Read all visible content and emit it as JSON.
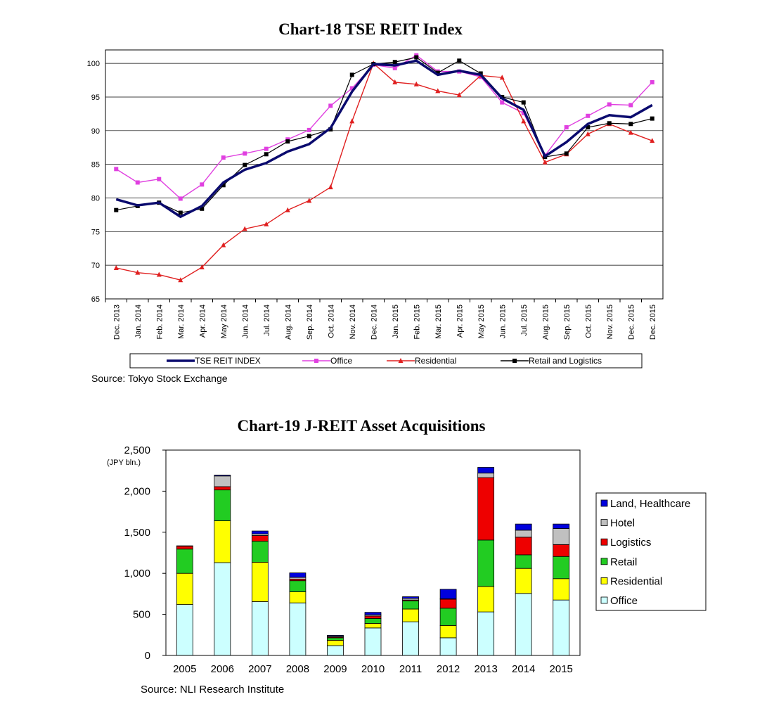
{
  "chart_data": [
    {
      "type": "line",
      "title": "Chart-18 TSE REIT Index",
      "source": "Source: Tokyo Stock Exchange",
      "xlabel": "",
      "ylabel": "",
      "ylim": [
        65,
        102
      ],
      "yticks": [
        "65",
        "70",
        "75",
        "80",
        "85",
        "90",
        "95",
        "100"
      ],
      "grid": true,
      "legend_position": "bottom",
      "categories": [
        "Dec. 2013",
        "Jan. 2014",
        "Feb. 2014",
        "Mar. 2014",
        "Apr. 2014",
        "May 2014",
        "Jun. 2014",
        "Jul. 2014",
        "Aug. 2014",
        "Sep. 2014",
        "Oct. 2014",
        "Nov. 2014",
        "Dec. 2014",
        "Jan. 2015",
        "Feb. 2015",
        "Mar. 2015",
        "Apr. 2015",
        "May 2015",
        "Jun. 2015",
        "Jul. 2015",
        "Aug. 2015",
        "Sep. 2015",
        "Oct. 2015",
        "Nov. 2015",
        "Dec. 2015",
        "Dec. 2015"
      ],
      "series": [
        {
          "name": "TSE REIT INDEX",
          "color": "#0a0a6e",
          "marker": "none",
          "values": [
            79.8,
            78.9,
            79.3,
            77.2,
            78.8,
            82.3,
            84.2,
            85.2,
            86.9,
            88.0,
            90.4,
            95.8,
            99.9,
            99.7,
            100.4,
            98.3,
            98.9,
            98.3,
            94.8,
            93.1,
            86.2,
            88.3,
            91.0,
            92.3,
            92.0,
            93.8
          ]
        },
        {
          "name": "Office",
          "color": "#e040e0",
          "marker": "square",
          "values": [
            84.3,
            82.3,
            82.8,
            79.9,
            82.0,
            86.0,
            86.6,
            87.3,
            88.7,
            90.1,
            93.7,
            96.3,
            99.8,
            99.3,
            101.2,
            98.8,
            98.8,
            98.0,
            94.2,
            92.6,
            86.3,
            90.5,
            92.2,
            93.9,
            93.8,
            97.2
          ]
        },
        {
          "name": "Residential",
          "color": "#e02020",
          "marker": "triangle",
          "values": [
            69.6,
            68.9,
            68.6,
            67.8,
            69.7,
            73.0,
            75.4,
            76.1,
            78.2,
            79.6,
            81.6,
            91.4,
            100.0,
            97.2,
            96.9,
            95.9,
            95.3,
            98.2,
            97.9,
            91.4,
            85.3,
            86.5,
            89.5,
            91.0,
            89.7,
            88.5
          ]
        },
        {
          "name": "Retail and Logistics",
          "color": "#000000",
          "marker": "square",
          "values": [
            78.2,
            78.8,
            79.3,
            77.8,
            78.4,
            81.9,
            84.9,
            86.5,
            88.4,
            89.2,
            90.2,
            98.3,
            99.9,
            100.2,
            100.9,
            98.6,
            100.4,
            98.5,
            95.0,
            94.2,
            86.1,
            86.6,
            90.5,
            91.1,
            91.0,
            91.8
          ]
        }
      ]
    },
    {
      "type": "bar",
      "stacked": true,
      "title": "Chart-19 J-REIT Asset Acquisitions",
      "source": "Source: NLI Research Institute",
      "unit": "(JPY bln.)",
      "xlabel": "",
      "ylabel": "",
      "ylim": [
        0,
        2500
      ],
      "yticks": [
        "0",
        "500",
        "1,000",
        "1,500",
        "2,000",
        "2,500"
      ],
      "legend_position": "right",
      "categories": [
        "2005",
        "2006",
        "2007",
        "2008",
        "2009",
        "2010",
        "2011",
        "2012",
        "2013",
        "2014",
        "2015"
      ],
      "series": [
        {
          "name": "Office",
          "color": "#ccffff",
          "values": [
            620,
            1130,
            655,
            640,
            120,
            335,
            410,
            215,
            530,
            755,
            675
          ]
        },
        {
          "name": "Residential",
          "color": "#ffff00",
          "values": [
            380,
            510,
            480,
            135,
            65,
            55,
            155,
            150,
            310,
            305,
            260
          ]
        },
        {
          "name": "Retail",
          "color": "#22cc22",
          "values": [
            295,
            375,
            255,
            135,
            30,
            60,
            100,
            210,
            565,
            165,
            270
          ]
        },
        {
          "name": "Logistics",
          "color": "#ee0000",
          "values": [
            35,
            40,
            70,
            20,
            10,
            30,
            10,
            110,
            760,
            215,
            145
          ]
        },
        {
          "name": "Hotel",
          "color": "#c0c0c0",
          "values": [
            5,
            130,
            20,
            20,
            10,
            15,
            20,
            5,
            55,
            85,
            195
          ]
        },
        {
          "name": "Land, Healthcare",
          "color": "#0000dd",
          "values": [
            0,
            10,
            35,
            55,
            10,
            30,
            20,
            115,
            70,
            75,
            55
          ]
        }
      ],
      "legend_order": [
        "Land, Healthcare",
        "Hotel",
        "Logistics",
        "Retail",
        "Residential",
        "Office"
      ]
    }
  ]
}
